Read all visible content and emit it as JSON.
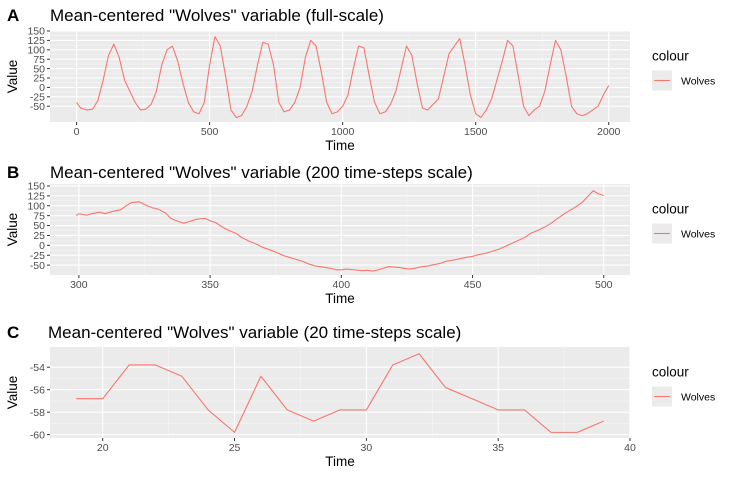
{
  "chart_data": [
    {
      "panel_tag": "A",
      "type": "line",
      "title": "Mean-centered \"Wolves\" variable (full-scale)",
      "xlabel": "Time",
      "ylabel": "Value",
      "xlim": [
        -100,
        2080
      ],
      "ylim": [
        -92,
        150
      ],
      "xticks": [
        0,
        500,
        1000,
        1500,
        2000
      ],
      "yticks": [
        -50,
        -25,
        0,
        25,
        50,
        75,
        100,
        125,
        150
      ],
      "legend_title": "colour",
      "series": [
        {
          "name": "Wolves",
          "color": "#F8766D",
          "points": [
            [
              0,
              -40
            ],
            [
              15,
              -55
            ],
            [
              40,
              -60
            ],
            [
              60,
              -58
            ],
            [
              80,
              -35
            ],
            [
              100,
              20
            ],
            [
              120,
              85
            ],
            [
              140,
              115
            ],
            [
              160,
              80
            ],
            [
              180,
              20
            ],
            [
              200,
              -10
            ],
            [
              220,
              -40
            ],
            [
              240,
              -60
            ],
            [
              260,
              -58
            ],
            [
              280,
              -45
            ],
            [
              300,
              -10
            ],
            [
              320,
              60
            ],
            [
              340,
              100
            ],
            [
              360,
              110
            ],
            [
              380,
              70
            ],
            [
              400,
              10
            ],
            [
              420,
              -40
            ],
            [
              440,
              -65
            ],
            [
              460,
              -70
            ],
            [
              480,
              -40
            ],
            [
              500,
              60
            ],
            [
              520,
              135
            ],
            [
              540,
              110
            ],
            [
              560,
              30
            ],
            [
              580,
              -60
            ],
            [
              600,
              -80
            ],
            [
              620,
              -75
            ],
            [
              640,
              -50
            ],
            [
              660,
              -10
            ],
            [
              680,
              60
            ],
            [
              700,
              120
            ],
            [
              720,
              115
            ],
            [
              740,
              60
            ],
            [
              760,
              -40
            ],
            [
              780,
              -65
            ],
            [
              800,
              -60
            ],
            [
              820,
              -40
            ],
            [
              840,
              0
            ],
            [
              860,
              80
            ],
            [
              880,
              125
            ],
            [
              900,
              110
            ],
            [
              920,
              40
            ],
            [
              940,
              -40
            ],
            [
              960,
              -70
            ],
            [
              980,
              -65
            ],
            [
              1000,
              -50
            ],
            [
              1020,
              -20
            ],
            [
              1040,
              50
            ],
            [
              1060,
              110
            ],
            [
              1080,
              105
            ],
            [
              1100,
              30
            ],
            [
              1120,
              -40
            ],
            [
              1140,
              -70
            ],
            [
              1160,
              -65
            ],
            [
              1180,
              -45
            ],
            [
              1200,
              -10
            ],
            [
              1220,
              50
            ],
            [
              1240,
              110
            ],
            [
              1260,
              85
            ],
            [
              1280,
              10
            ],
            [
              1300,
              -55
            ],
            [
              1320,
              -60
            ],
            [
              1340,
              -45
            ],
            [
              1360,
              -30
            ],
            [
              1380,
              30
            ],
            [
              1400,
              90
            ],
            [
              1420,
              110
            ],
            [
              1440,
              130
            ],
            [
              1460,
              60
            ],
            [
              1480,
              -20
            ],
            [
              1500,
              -70
            ],
            [
              1520,
              -80
            ],
            [
              1540,
              -60
            ],
            [
              1560,
              -30
            ],
            [
              1580,
              20
            ],
            [
              1600,
              70
            ],
            [
              1620,
              125
            ],
            [
              1640,
              110
            ],
            [
              1660,
              30
            ],
            [
              1680,
              -50
            ],
            [
              1700,
              -75
            ],
            [
              1720,
              -60
            ],
            [
              1740,
              -50
            ],
            [
              1760,
              -10
            ],
            [
              1780,
              60
            ],
            [
              1800,
              125
            ],
            [
              1820,
              100
            ],
            [
              1840,
              30
            ],
            [
              1860,
              -50
            ],
            [
              1880,
              -70
            ],
            [
              1900,
              -75
            ],
            [
              1920,
              -70
            ],
            [
              1940,
              -60
            ],
            [
              1960,
              -50
            ],
            [
              1980,
              -20
            ],
            [
              2000,
              5
            ]
          ]
        }
      ]
    },
    {
      "panel_tag": "B",
      "type": "line",
      "title": "Mean-centered \"Wolves\" variable (200 time-steps scale)",
      "xlabel": "Time",
      "ylabel": "Value",
      "xlim": [
        289,
        510
      ],
      "ylim": [
        -75,
        155
      ],
      "xticks": [
        300,
        350,
        400,
        450,
        500
      ],
      "yticks": [
        -50,
        -25,
        0,
        25,
        50,
        75,
        100,
        125,
        150
      ],
      "legend_title": "colour",
      "series": [
        {
          "name": "Wolves",
          "color": "#F8766D",
          "points": [
            [
              299,
              75
            ],
            [
              300,
              80
            ],
            [
              303,
              76
            ],
            [
              305,
              80
            ],
            [
              308,
              84
            ],
            [
              310,
              80
            ],
            [
              313,
              86
            ],
            [
              316,
              90
            ],
            [
              318,
              100
            ],
            [
              320,
              108
            ],
            [
              323,
              110
            ],
            [
              326,
              100
            ],
            [
              328,
              95
            ],
            [
              330,
              92
            ],
            [
              333,
              82
            ],
            [
              335,
              68
            ],
            [
              338,
              60
            ],
            [
              340,
              56
            ],
            [
              342,
              60
            ],
            [
              345,
              66
            ],
            [
              348,
              68
            ],
            [
              350,
              62
            ],
            [
              352,
              58
            ],
            [
              355,
              45
            ],
            [
              357,
              38
            ],
            [
              360,
              30
            ],
            [
              362,
              20
            ],
            [
              365,
              10
            ],
            [
              368,
              2
            ],
            [
              370,
              -5
            ],
            [
              373,
              -12
            ],
            [
              376,
              -20
            ],
            [
              378,
              -26
            ],
            [
              380,
              -30
            ],
            [
              382,
              -34
            ],
            [
              385,
              -40
            ],
            [
              388,
              -48
            ],
            [
              390,
              -52
            ],
            [
              393,
              -55
            ],
            [
              396,
              -58
            ],
            [
              398,
              -62
            ],
            [
              400,
              -62
            ],
            [
              402,
              -60
            ],
            [
              405,
              -62
            ],
            [
              408,
              -64
            ],
            [
              410,
              -63
            ],
            [
              412,
              -65
            ],
            [
              414,
              -62
            ],
            [
              416,
              -58
            ],
            [
              418,
              -54
            ],
            [
              420,
              -55
            ],
            [
              422,
              -56
            ],
            [
              424,
              -58
            ],
            [
              426,
              -60
            ],
            [
              428,
              -58
            ],
            [
              430,
              -55
            ],
            [
              433,
              -52
            ],
            [
              436,
              -48
            ],
            [
              438,
              -45
            ],
            [
              440,
              -40
            ],
            [
              442,
              -38
            ],
            [
              445,
              -34
            ],
            [
              448,
              -30
            ],
            [
              450,
              -28
            ],
            [
              452,
              -24
            ],
            [
              455,
              -20
            ],
            [
              458,
              -14
            ],
            [
              460,
              -10
            ],
            [
              462,
              -4
            ],
            [
              465,
              5
            ],
            [
              468,
              14
            ],
            [
              470,
              20
            ],
            [
              472,
              30
            ],
            [
              475,
              38
            ],
            [
              478,
              48
            ],
            [
              480,
              56
            ],
            [
              482,
              66
            ],
            [
              485,
              80
            ],
            [
              488,
              92
            ],
            [
              490,
              100
            ],
            [
              492,
              110
            ],
            [
              494,
              124
            ],
            [
              496,
              138
            ],
            [
              498,
              130
            ],
            [
              500,
              126
            ]
          ]
        }
      ]
    },
    {
      "panel_tag": "C",
      "type": "line",
      "title": "Mean-centered \"Wolves\" variable (20 time-steps scale)",
      "xlabel": "Time",
      "ylabel": "Value",
      "xlim": [
        18,
        40
      ],
      "ylim": [
        -60.3,
        -52.2
      ],
      "xticks": [
        20,
        25,
        30,
        35,
        40
      ],
      "yticks": [
        -60,
        -58,
        -56,
        -54
      ],
      "legend_title": "colour",
      "series": [
        {
          "name": "Wolves",
          "color": "#F8766D",
          "points": [
            [
              19,
              -56.8
            ],
            [
              20,
              -56.8
            ],
            [
              21,
              -53.8
            ],
            [
              22,
              -53.8
            ],
            [
              23,
              -54.8
            ],
            [
              24,
              -57.8
            ],
            [
              25,
              -59.8
            ],
            [
              26,
              -54.8
            ],
            [
              27,
              -57.8
            ],
            [
              28,
              -58.8
            ],
            [
              29,
              -57.8
            ],
            [
              30,
              -57.8
            ],
            [
              31,
              -53.8
            ],
            [
              32,
              -52.8
            ],
            [
              33,
              -55.8
            ],
            [
              34,
              -56.8
            ],
            [
              35,
              -57.8
            ],
            [
              36,
              -57.8
            ],
            [
              37,
              -59.8
            ],
            [
              38,
              -59.8
            ],
            [
              39,
              -58.8
            ]
          ]
        }
      ]
    }
  ]
}
